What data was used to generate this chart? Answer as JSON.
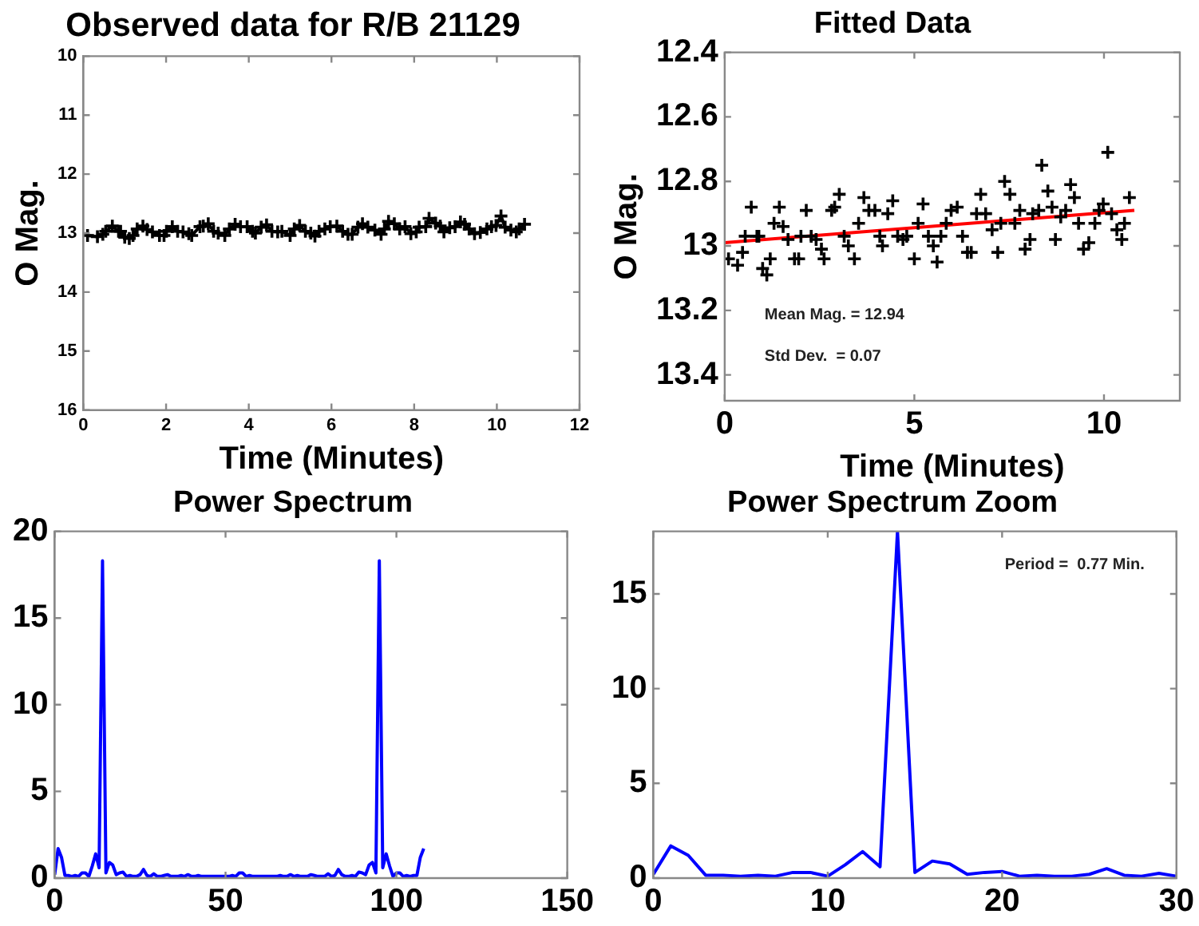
{
  "chart_data": [
    {
      "type": "line",
      "title": "Observed data for R/B 21129",
      "xlabel": "Time (Minutes)",
      "ylabel": "O Mag.",
      "xlim": [
        0,
        12
      ],
      "xticks": [
        0,
        2,
        4,
        6,
        8,
        10,
        12
      ],
      "ylim": [
        16,
        10
      ],
      "yticks": [
        10,
        11,
        12,
        13,
        14,
        15,
        16
      ],
      "grid": false,
      "legend": false,
      "marker": "cross",
      "series": [
        {
          "color": "#000000",
          "x": [
            0.1,
            0.34,
            0.47,
            0.54,
            0.7,
            0.85,
            0.9,
            1.0,
            1.11,
            1.2,
            1.3,
            1.44,
            1.54,
            1.67,
            1.84,
            1.95,
            2.01,
            2.15,
            2.28,
            2.41,
            2.55,
            2.62,
            2.82,
            2.9,
            3.02,
            3.15,
            3.26,
            3.42,
            3.53,
            3.67,
            3.8,
            3.96,
            4.09,
            4.16,
            4.3,
            4.43,
            4.56,
            4.7,
            4.8,
            5.0,
            5.1,
            5.23,
            5.37,
            5.5,
            5.6,
            5.7,
            5.84,
            5.97,
            6.13,
            6.27,
            6.4,
            6.5,
            6.64,
            6.75,
            6.88,
            7.05,
            7.2,
            7.28,
            7.38,
            7.52,
            7.65,
            7.78,
            7.92,
            8.05,
            8.12,
            8.28,
            8.36,
            8.52,
            8.63,
            8.72,
            8.86,
            8.99,
            9.12,
            9.22,
            9.33,
            9.46,
            9.6,
            9.76,
            9.87,
            9.98,
            10.1,
            10.2,
            10.34,
            10.47,
            10.54,
            10.67
          ],
          "values": [
            13.04,
            13.06,
            13.02,
            12.97,
            12.88,
            12.97,
            12.97,
            13.07,
            13.09,
            13.04,
            12.93,
            12.88,
            12.94,
            12.98,
            13.04,
            13.04,
            12.97,
            12.89,
            12.97,
            12.98,
            13.01,
            13.04,
            12.89,
            12.88,
            12.84,
            12.97,
            13.0,
            13.04,
            12.93,
            12.85,
            12.89,
            12.89,
            12.97,
            13.0,
            12.9,
            12.86,
            12.97,
            12.98,
            12.97,
            13.04,
            12.93,
            12.87,
            12.97,
            13.0,
            13.05,
            12.97,
            12.93,
            12.89,
            12.88,
            12.97,
            13.02,
            13.02,
            12.9,
            12.84,
            12.9,
            12.95,
            13.02,
            12.93,
            12.8,
            12.84,
            12.93,
            12.89,
            13.01,
            12.98,
            12.9,
            12.89,
            12.75,
            12.83,
            12.88,
            12.98,
            12.91,
            12.89,
            12.81,
            12.85,
            12.93,
            13.01,
            12.99,
            12.93,
            12.89,
            12.87,
            12.71,
            12.9,
            12.95,
            12.98,
            12.93,
            12.85
          ]
        }
      ]
    },
    {
      "type": "scatter",
      "title": "Fitted Data",
      "xlabel": "Time (Minutes)",
      "ylabel": "O Mag.",
      "xlim": [
        0,
        12
      ],
      "xticks": [
        0,
        5,
        10
      ],
      "ylim": [
        13.48,
        12.4
      ],
      "yticks": [
        12.4,
        12.6,
        12.8,
        13,
        13.2,
        13.4
      ],
      "grid": false,
      "legend": false,
      "annotations": [
        "Mean Mag. = 12.94",
        "Std Dev.  = 0.07"
      ],
      "series": [
        {
          "marker": "cross",
          "color": "#000000",
          "x": [
            0.1,
            0.34,
            0.47,
            0.54,
            0.7,
            0.85,
            0.9,
            1.0,
            1.11,
            1.2,
            1.3,
            1.44,
            1.54,
            1.67,
            1.84,
            1.95,
            2.01,
            2.15,
            2.28,
            2.41,
            2.55,
            2.62,
            2.82,
            2.9,
            3.02,
            3.15,
            3.26,
            3.42,
            3.53,
            3.67,
            3.8,
            3.96,
            4.09,
            4.16,
            4.3,
            4.43,
            4.56,
            4.7,
            4.8,
            5.0,
            5.1,
            5.23,
            5.37,
            5.5,
            5.6,
            5.7,
            5.84,
            5.97,
            6.13,
            6.27,
            6.4,
            6.5,
            6.64,
            6.75,
            6.88,
            7.05,
            7.2,
            7.28,
            7.38,
            7.52,
            7.65,
            7.78,
            7.92,
            8.05,
            8.12,
            8.28,
            8.36,
            8.52,
            8.63,
            8.72,
            8.86,
            8.99,
            9.12,
            9.22,
            9.33,
            9.46,
            9.6,
            9.76,
            9.87,
            9.98,
            10.1,
            10.2,
            10.34,
            10.47,
            10.54,
            10.67
          ],
          "values": [
            13.04,
            13.06,
            13.02,
            12.97,
            12.88,
            12.97,
            12.97,
            13.07,
            13.09,
            13.04,
            12.93,
            12.88,
            12.94,
            12.98,
            13.04,
            13.04,
            12.97,
            12.89,
            12.97,
            12.98,
            13.01,
            13.04,
            12.89,
            12.88,
            12.84,
            12.97,
            13.0,
            13.04,
            12.93,
            12.85,
            12.89,
            12.89,
            12.97,
            13.0,
            12.9,
            12.86,
            12.97,
            12.98,
            12.97,
            13.04,
            12.93,
            12.87,
            12.97,
            13.0,
            13.05,
            12.97,
            12.93,
            12.89,
            12.88,
            12.97,
            13.02,
            13.02,
            12.9,
            12.84,
            12.9,
            12.95,
            13.02,
            12.93,
            12.8,
            12.84,
            12.93,
            12.89,
            13.01,
            12.98,
            12.9,
            12.89,
            12.75,
            12.83,
            12.88,
            12.98,
            12.91,
            12.89,
            12.81,
            12.85,
            12.93,
            13.01,
            12.99,
            12.93,
            12.89,
            12.87,
            12.71,
            12.9,
            12.95,
            12.98,
            12.93,
            12.85
          ]
        },
        {
          "type": "line",
          "marker": "none",
          "color": "#ff0000",
          "x": [
            0,
            10.8
          ],
          "values": [
            12.99,
            12.89
          ]
        }
      ]
    },
    {
      "type": "line",
      "title": "Power Spectrum",
      "xlim": [
        0,
        150
      ],
      "xticks": [
        0,
        50,
        100,
        150
      ],
      "ylim": [
        0,
        20
      ],
      "yticks": [
        0,
        5,
        10,
        15,
        20
      ],
      "grid": false,
      "legend": false,
      "marker": "none",
      "series": [
        {
          "color": "#0000ff",
          "x": [
            0,
            1,
            2,
            3,
            4,
            5,
            6,
            7,
            8,
            9,
            10,
            11,
            12,
            13,
            14,
            15,
            16,
            17,
            18,
            19,
            20,
            21,
            22,
            23,
            24,
            25,
            26,
            27,
            28,
            29,
            30,
            31,
            32,
            33,
            34,
            35,
            36,
            37,
            38,
            39,
            40,
            41,
            42,
            43,
            44,
            45,
            46,
            47,
            48,
            49,
            50,
            51,
            52,
            53,
            54,
            55,
            56,
            57,
            58,
            59,
            60,
            61,
            62,
            63,
            64,
            65,
            66,
            67,
            68,
            69,
            70,
            71,
            72,
            73,
            74,
            75,
            76,
            77,
            78,
            79,
            80,
            81,
            82,
            83,
            84,
            85,
            86,
            87,
            88,
            89,
            90,
            91,
            92,
            93,
            94,
            95,
            96,
            97,
            98,
            99,
            100,
            101,
            102,
            103,
            104,
            105,
            106,
            107,
            108
          ],
          "values": [
            0.2,
            1.7,
            1.2,
            0.15,
            0.15,
            0.1,
            0.15,
            0.1,
            0.3,
            0.3,
            0.1,
            0.7,
            1.4,
            0.6,
            18.3,
            0.3,
            0.9,
            0.75,
            0.2,
            0.3,
            0.35,
            0.1,
            0.15,
            0.1,
            0.1,
            0.2,
            0.5,
            0.15,
            0.1,
            0.25,
            0.1,
            0.1,
            0.15,
            0.2,
            0.1,
            0.1,
            0.1,
            0.15,
            0.1,
            0.2,
            0.1,
            0.1,
            0.15,
            0.1,
            0.1,
            0.1,
            0.1,
            0.1,
            0.1,
            0.1,
            0.1,
            0.1,
            0.15,
            0.1,
            0.3,
            0.3,
            0.1,
            0.15,
            0.1,
            0.1,
            0.1,
            0.1,
            0.1,
            0.1,
            0.1,
            0.1,
            0.15,
            0.1,
            0.1,
            0.2,
            0.1,
            0.15,
            0.1,
            0.1,
            0.1,
            0.2,
            0.15,
            0.1,
            0.1,
            0.1,
            0.25,
            0.1,
            0.15,
            0.5,
            0.2,
            0.1,
            0.1,
            0.15,
            0.1,
            0.35,
            0.3,
            0.2,
            0.75,
            0.9,
            0.3,
            18.3,
            0.6,
            1.4,
            0.7,
            0.1,
            0.3,
            0.3,
            0.1,
            0.15,
            0.1,
            0.15,
            0.15,
            1.2,
            1.7
          ]
        }
      ]
    },
    {
      "type": "line",
      "title": "Power Spectrum Zoom",
      "xlim": [
        0,
        30
      ],
      "xticks": [
        0,
        10,
        20,
        30
      ],
      "ylim": [
        0,
        18.3
      ],
      "yticks": [
        0,
        5,
        10,
        15
      ],
      "grid": false,
      "legend": false,
      "marker": "none",
      "annotations": [
        "Period =  0.77 Min."
      ],
      "series": [
        {
          "color": "#0000ff",
          "x": [
            0,
            1,
            2,
            3,
            4,
            5,
            6,
            7,
            8,
            9,
            10,
            11,
            12,
            13,
            14,
            15,
            16,
            17,
            18,
            19,
            20,
            21,
            22,
            23,
            24,
            25,
            26,
            27,
            28,
            29,
            30
          ],
          "values": [
            0.2,
            1.7,
            1.2,
            0.15,
            0.15,
            0.1,
            0.15,
            0.1,
            0.3,
            0.3,
            0.1,
            0.7,
            1.4,
            0.6,
            18.3,
            0.3,
            0.9,
            0.75,
            0.2,
            0.3,
            0.35,
            0.1,
            0.15,
            0.1,
            0.1,
            0.2,
            0.5,
            0.15,
            0.1,
            0.25,
            0.1
          ]
        }
      ]
    }
  ]
}
